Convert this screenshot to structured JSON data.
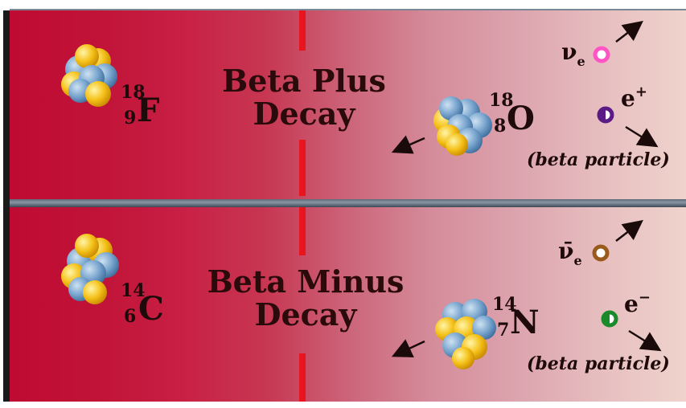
{
  "top": {
    "title_line1": "Beta Plus",
    "title_line2": "Decay",
    "parent": {
      "mass": "18",
      "atomic": "9",
      "symbol": "F"
    },
    "daughter": {
      "mass": "18",
      "atomic": "8",
      "symbol": "O"
    },
    "neutrino_label": "ν",
    "neutrino_sub": "e",
    "particle_label": "e",
    "particle_charge": "+",
    "caption": "(beta particle)"
  },
  "bottom": {
    "title_line1": "Beta Minus",
    "title_line2": "Decay",
    "parent": {
      "mass": "14",
      "atomic": "6",
      "symbol": "C"
    },
    "daughter": {
      "mass": "14",
      "atomic": "7",
      "symbol": "N"
    },
    "neutrino_label": "ν̄",
    "neutrino_sub": "e",
    "particle_label": "e",
    "particle_charge": "−",
    "caption": "(beta particle)"
  },
  "colors": {
    "proton": "#f2c018",
    "neutron": "#6f9fcf",
    "divider_line": "#e8141e",
    "neutrino_top": "#ff66cc",
    "positron": "#5b1a86",
    "antineutrino": "#9a5a1e",
    "electron": "#1a8a2a"
  }
}
